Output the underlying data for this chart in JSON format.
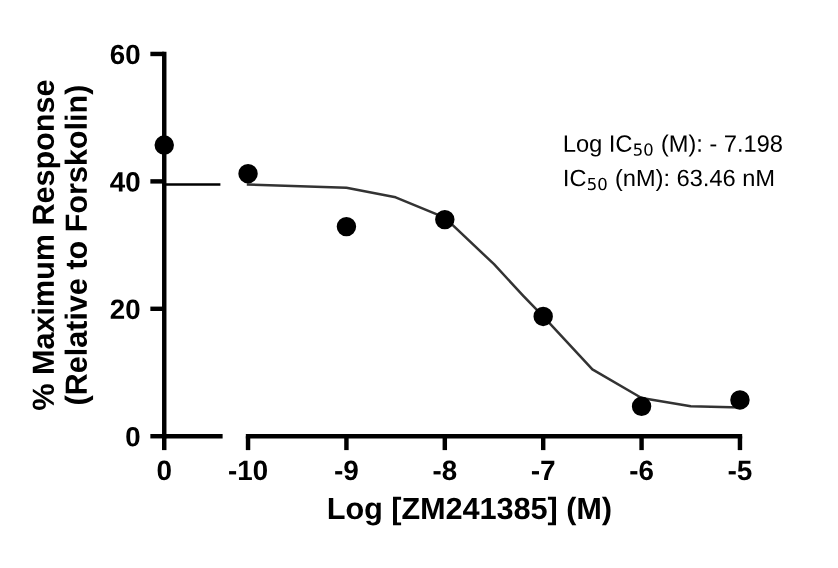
{
  "chart_data": [
    {
      "type": "scatter",
      "categories": [
        "0"
      ],
      "ylabel": "% Maximum Response\n(Relative to Forskolin)",
      "ylim": [
        0,
        60
      ],
      "yticks": [
        0,
        20,
        40,
        60
      ],
      "marker": "circle",
      "grid": false,
      "legend": false,
      "series": [
        {
          "color": "#000000",
          "values": [
            45.7
          ]
        }
      ],
      "ref_lines": [
        {
          "axis": "y",
          "value": 39.5,
          "color": "#000000"
        }
      ]
    },
    {
      "type": "scatter",
      "xlabel": "Log [ZM241385] (M)",
      "xlim": [
        -10,
        -5
      ],
      "xticks": [
        {
          "value": -10,
          "label": "-10"
        },
        {
          "value": -9,
          "label": "-9"
        },
        {
          "value": -8,
          "label": "-8"
        },
        {
          "value": -7,
          "label": "-7"
        },
        {
          "value": -6,
          "label": "-6"
        },
        {
          "value": -5,
          "label": "-5"
        }
      ],
      "ylim": [
        0,
        60
      ],
      "tick_labels": "x",
      "marker": "circle",
      "grid": false,
      "legend": false,
      "series": [
        {
          "color": "#000000",
          "x": [
            -10,
            -9,
            -8,
            -7,
            -6,
            -5
          ],
          "values": [
            41.2,
            32.9,
            34.0,
            18.8,
            4.7,
            5.7
          ]
        },
        {
          "type": "line",
          "color": "#333333",
          "marker": "none",
          "x": [
            -10,
            -9,
            -8.5,
            -8,
            -7.5,
            -7.2,
            -7,
            -6.5,
            -6,
            -5.5,
            -5
          ],
          "values": [
            39.5,
            39,
            37.5,
            34.3,
            27,
            22,
            18.8,
            10.5,
            6,
            4.7,
            4.5
          ]
        }
      ],
      "annotations": [
        "Log IC$_{50}$ (M): - 7.198",
        "IC$_{50}$ (nM): 63.46 nM"
      ]
    }
  ]
}
